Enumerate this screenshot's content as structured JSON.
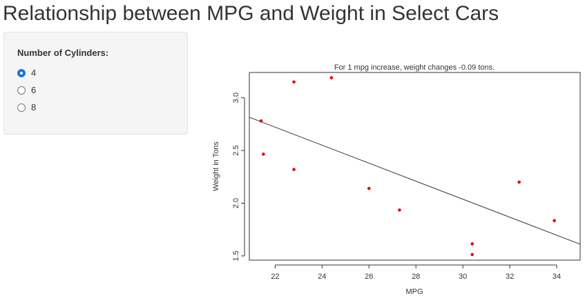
{
  "page": {
    "title": "Relationship between MPG and Weight in Select Cars"
  },
  "sidebar": {
    "label": "Number of Cylinders:",
    "options": [
      {
        "label": "4",
        "selected": true
      },
      {
        "label": "6",
        "selected": false
      },
      {
        "label": "8",
        "selected": false
      }
    ]
  },
  "colors": {
    "points": "#e8000b",
    "accent": "#1a73e8"
  },
  "chart_data": {
    "type": "scatter",
    "title": "For 1 mpg increase, weight changes -0.09 tons.",
    "xlabel": "MPG",
    "ylabel": "Weight in Tons",
    "xlim": [
      20.9,
      35.0
    ],
    "ylim": [
      1.46,
      3.24
    ],
    "xticks": [
      22,
      24,
      26,
      28,
      30,
      32,
      34
    ],
    "yticks": [
      1.5,
      2.0,
      2.5,
      3.0
    ],
    "xtick_labels": [
      "22",
      "24",
      "26",
      "28",
      "30",
      "32",
      "34"
    ],
    "ytick_labels": [
      "1.5",
      "2.0",
      "2.5",
      "3.0"
    ],
    "points": [
      {
        "x": 21.4,
        "y": 2.78
      },
      {
        "x": 21.5,
        "y": 2.465
      },
      {
        "x": 22.8,
        "y": 3.15
      },
      {
        "x": 22.8,
        "y": 2.32
      },
      {
        "x": 24.4,
        "y": 3.19
      },
      {
        "x": 26.0,
        "y": 2.14
      },
      {
        "x": 27.3,
        "y": 1.935
      },
      {
        "x": 30.4,
        "y": 1.615
      },
      {
        "x": 30.4,
        "y": 1.513
      },
      {
        "x": 32.4,
        "y": 2.2
      },
      {
        "x": 33.9,
        "y": 1.835
      }
    ],
    "regression": {
      "slope": -0.0854,
      "intercept": 4.6
    },
    "grid": false
  }
}
